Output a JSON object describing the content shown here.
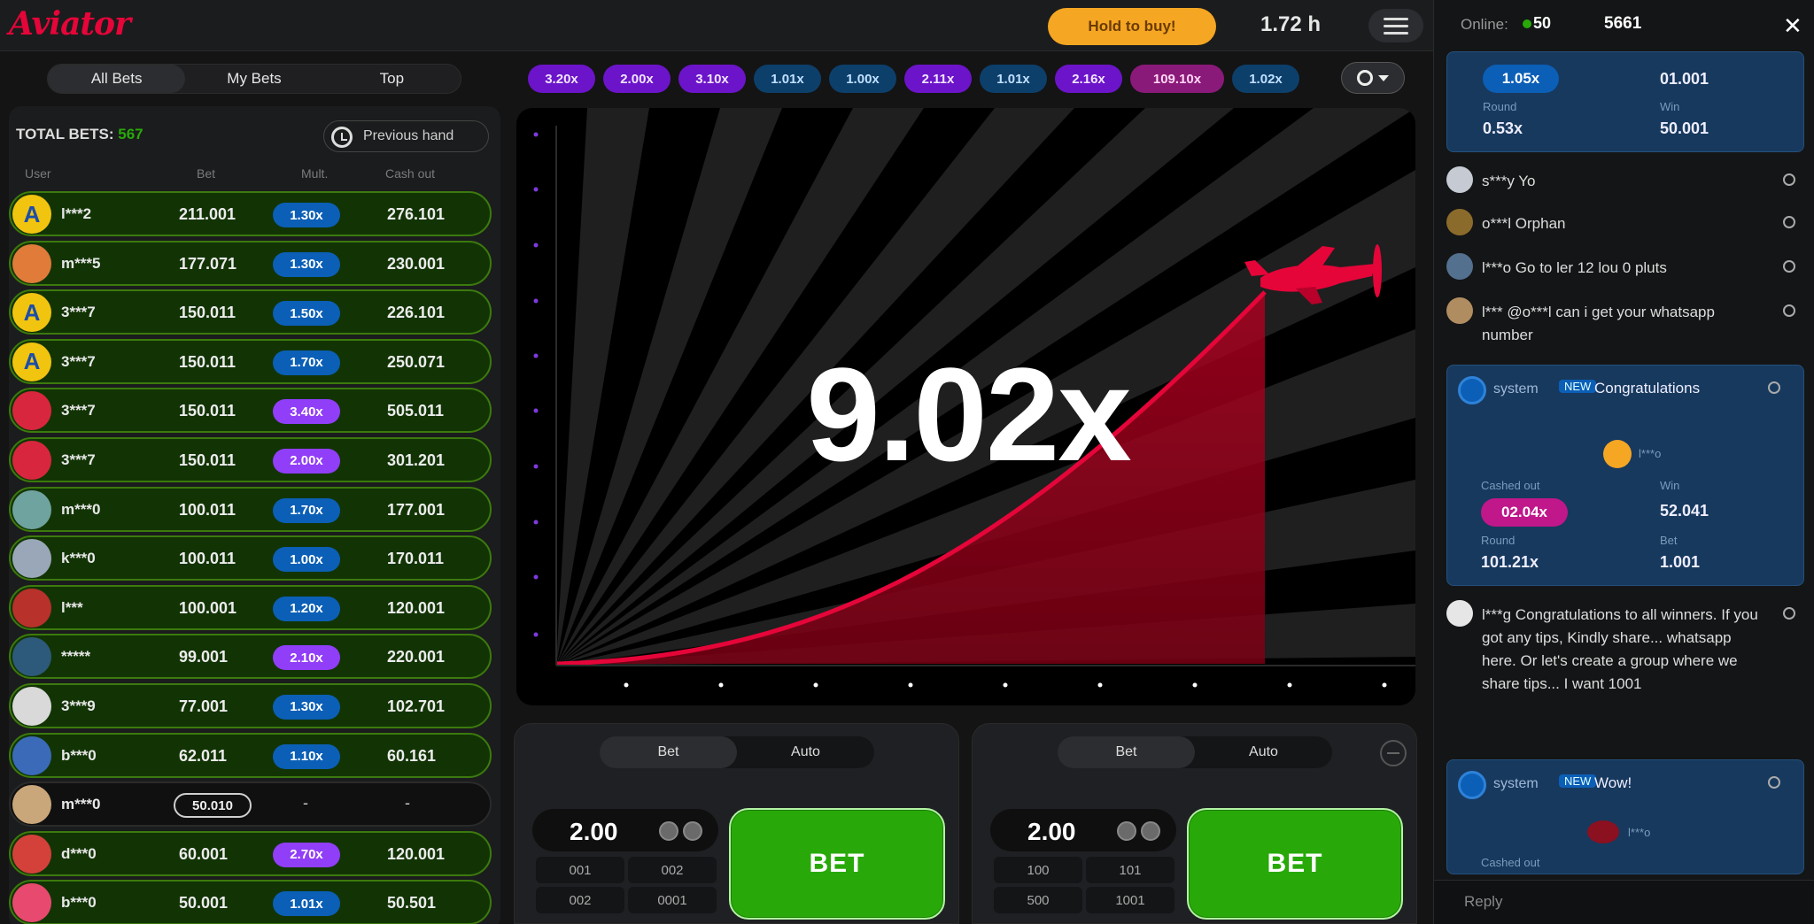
{
  "header": {
    "logo": "Aviator",
    "promo": "Hold to buy!",
    "balance": "1.72 h",
    "colors": {
      "brand": "#e50539",
      "promo": "#f5a623"
    }
  },
  "bets": {
    "tabs": [
      "All Bets",
      "My Bets",
      "Top"
    ],
    "total_label": "TOTAL BETS:",
    "total_count": "567",
    "prev_hand": "Previous hand",
    "columns": [
      "User",
      "Bet",
      "Mult.",
      "Cash out"
    ],
    "rows": [
      {
        "user": "l***2",
        "bet": "211.001",
        "mult": "1.30x",
        "cashout": "276.101",
        "mult_color": "blue",
        "avatar": "A",
        "avatar_bg": "#f1c40f"
      },
      {
        "user": "m***5",
        "bet": "177.071",
        "mult": "1.30x",
        "cashout": "230.001",
        "mult_color": "blue",
        "avatar": "",
        "avatar_bg": "#e07b3a"
      },
      {
        "user": "3***7",
        "bet": "150.011",
        "mult": "1.50x",
        "cashout": "226.101",
        "mult_color": "blue",
        "avatar": "A",
        "avatar_bg": "#f1c40f"
      },
      {
        "user": "3***7",
        "bet": "150.011",
        "mult": "1.70x",
        "cashout": "250.071",
        "mult_color": "blue",
        "avatar": "A",
        "avatar_bg": "#f1c40f"
      },
      {
        "user": "3***7",
        "bet": "150.011",
        "mult": "3.40x",
        "cashout": "505.011",
        "mult_color": "purple",
        "avatar": "",
        "avatar_bg": "#d8263e"
      },
      {
        "user": "3***7",
        "bet": "150.011",
        "mult": "2.00x",
        "cashout": "301.201",
        "mult_color": "purple",
        "avatar": "",
        "avatar_bg": "#d8263e"
      },
      {
        "user": "m***0",
        "bet": "100.011",
        "mult": "1.70x",
        "cashout": "177.001",
        "mult_color": "blue",
        "avatar": "",
        "avatar_bg": "#6fa3a0"
      },
      {
        "user": "k***0",
        "bet": "100.011",
        "mult": "1.00x",
        "cashout": "170.011",
        "mult_color": "blue",
        "avatar": "",
        "avatar_bg": "#9aa7b8"
      },
      {
        "user": "l***",
        "bet": "100.001",
        "mult": "1.20x",
        "cashout": "120.001",
        "mult_color": "blue",
        "avatar": "",
        "avatar_bg": "#b8312b"
      },
      {
        "user": "*****",
        "bet": "99.001",
        "mult": "2.10x",
        "cashout": "220.001",
        "mult_color": "purple",
        "avatar": "",
        "avatar_bg": "#2d5a7a"
      },
      {
        "user": "3***9",
        "bet": "77.001",
        "mult": "1.30x",
        "cashout": "102.701",
        "mult_color": "blue",
        "avatar": "",
        "avatar_bg": "#d9d9d9"
      },
      {
        "user": "b***0",
        "bet": "62.011",
        "mult": "1.10x",
        "cashout": "60.161",
        "mult_color": "blue",
        "avatar": "",
        "avatar_bg": "#3a6ab8"
      },
      {
        "user": "m***0",
        "bet": "",
        "mult": "50.010",
        "cashout": "-",
        "mult_color": "outline",
        "avatar": "",
        "avatar_bg": "#c9a77a",
        "nowin": true
      },
      {
        "user": "d***0",
        "bet": "60.001",
        "mult": "2.70x",
        "cashout": "120.001",
        "mult_color": "purple",
        "avatar": "",
        "avatar_bg": "#d4413b"
      },
      {
        "user": "b***0",
        "bet": "50.001",
        "mult": "1.01x",
        "cashout": "50.501",
        "mult_color": "blue",
        "avatar": "",
        "avatar_bg": "#e8496f"
      }
    ]
  },
  "history": {
    "pills": [
      {
        "label": "3.20x",
        "color": "purple"
      },
      {
        "label": "2.00x",
        "color": "purple"
      },
      {
        "label": "3.10x",
        "color": "purple"
      },
      {
        "label": "1.01x",
        "color": "blue"
      },
      {
        "label": "1.00x",
        "color": "blue"
      },
      {
        "label": "2.11x",
        "color": "purple"
      },
      {
        "label": "1.01x",
        "color": "blue"
      },
      {
        "label": "2.16x",
        "color": "purple"
      },
      {
        "label": "109.10x",
        "color": "magenta"
      },
      {
        "label": "1.02x",
        "color": "blue"
      }
    ]
  },
  "game": {
    "multiplier": "9.02x"
  },
  "bet_panels": [
    {
      "tabs": [
        "Bet",
        "Auto"
      ],
      "stake": "2.00",
      "quick": [
        "001",
        "002",
        "002",
        "0001"
      ],
      "button": "BET"
    },
    {
      "tabs": [
        "Bet",
        "Auto"
      ],
      "stake": "2.00",
      "quick": [
        "100",
        "101",
        "500",
        "1001"
      ],
      "button": "BET"
    }
  ],
  "chat": {
    "online_label": "Online:",
    "online_count": "50",
    "total": "5661",
    "close": "✕",
    "top_card": {
      "chip": "1.05x",
      "win": "01.001",
      "lbl_left": "Round",
      "lbl_right": "Win",
      "val_left": "0.53x",
      "val_right": "50.001"
    },
    "messages": [
      {
        "text": "s***y Yo",
        "avatar_bg": "#c5cad3"
      },
      {
        "text": "o***l Orphan",
        "avatar_bg": "#8b6b2b"
      },
      {
        "text": "l***o Go to ler 12 lou 0 pluts",
        "avatar_bg": "#54708f"
      },
      {
        "text": "l*** @o***l can i get your whatsapp number",
        "avatar_bg": "#b08d60"
      }
    ],
    "sys1": {
      "title": "Congratulations",
      "badge": "NEW",
      "sender": "system",
      "lbl_cash": "Cashed out",
      "lbl_win": "Win",
      "lbl_round": "Round",
      "lbl_bet": "Bet",
      "chip": "02.04x",
      "win": "52.041",
      "round": "101.21x",
      "bet": "1.001",
      "user": "l***o"
    },
    "long_msg": {
      "text": "l***g Congratulations to all winners. If you got any tips, Kindly share... whatsapp here. Or let's create a group where we share tips... I want 1001",
      "avatar_bg": "#e6e6e6"
    },
    "sys2": {
      "title": "Wow!",
      "badge": "NEW",
      "sender": "system",
      "lbl": "Cashed out",
      "user": "l***o"
    },
    "input_placeholder": "Reply"
  }
}
